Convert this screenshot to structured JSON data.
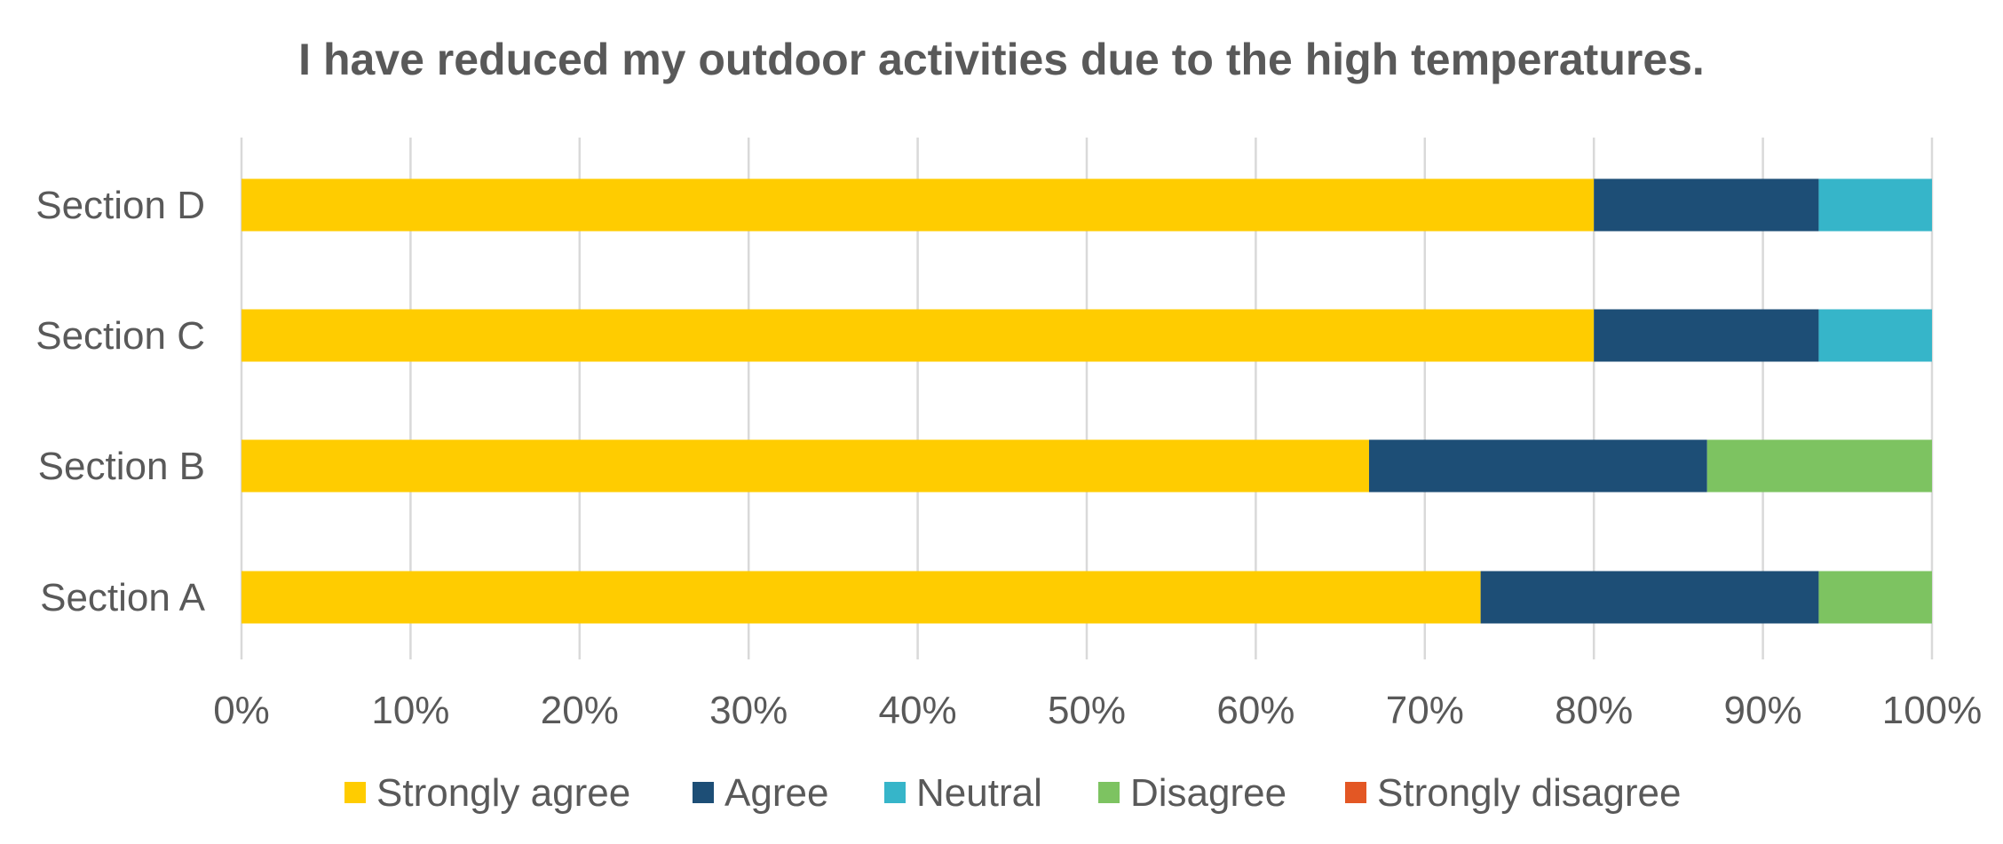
{
  "chart_data": {
    "type": "bar",
    "orientation": "horizontal",
    "stacked": "percent",
    "title": "I have reduced my outdoor activities due to the high temperatures.",
    "categories": [
      "Section D",
      "Section C",
      "Section B",
      "Section A"
    ],
    "series": [
      {
        "name": "Strongly agree",
        "color": "#FFCC00",
        "values": [
          80.0,
          80.0,
          66.7,
          73.3
        ]
      },
      {
        "name": "Agree",
        "color": "#1D4E76",
        "values": [
          13.3,
          13.3,
          20.0,
          20.0
        ]
      },
      {
        "name": "Neutral",
        "color": "#36B5C9",
        "values": [
          6.7,
          6.7,
          0,
          0
        ]
      },
      {
        "name": "Disagree",
        "color": "#7DC361",
        "values": [
          0,
          0,
          13.3,
          6.7
        ]
      },
      {
        "name": "Strongly disagree",
        "color": "#E35724",
        "values": [
          0,
          0,
          0,
          0
        ]
      }
    ],
    "xlim": [
      0,
      100
    ],
    "xticks": [
      "0%",
      "10%",
      "20%",
      "30%",
      "40%",
      "50%",
      "60%",
      "70%",
      "80%",
      "90%",
      "100%"
    ],
    "grid": "vertical",
    "legend": "bottom"
  }
}
